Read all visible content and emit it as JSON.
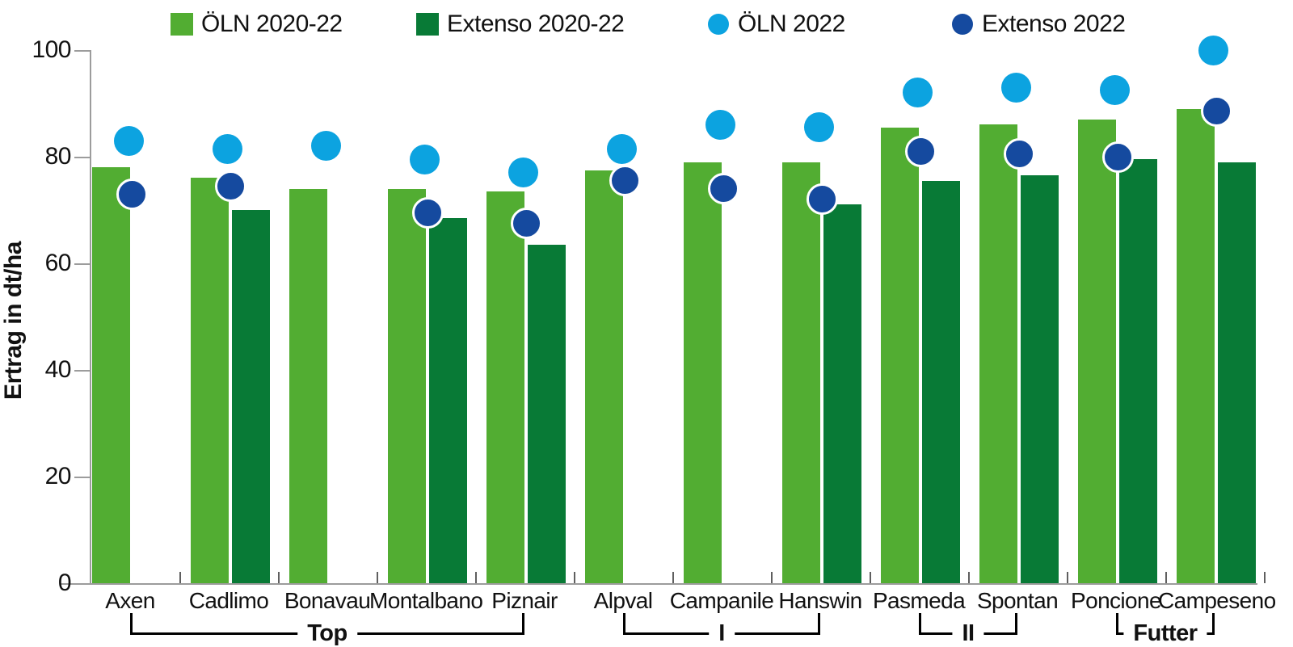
{
  "chart_data": {
    "type": "bar",
    "title": "",
    "ylabel": "Ertrag in dt/ha",
    "xlabel": "",
    "ylim": [
      0,
      100
    ],
    "yticks": [
      0,
      20,
      40,
      60,
      80,
      100
    ],
    "grid": false,
    "legend_position": "top",
    "categories": [
      "Axen",
      "Cadlimo",
      "Bonavau",
      "Montalbano",
      "Piznair",
      "Alpval",
      "Campanile",
      "Hanswin",
      "Pasmeda",
      "Spontan",
      "Poncione",
      "Campeseno"
    ],
    "groups": [
      {
        "label": "Top",
        "from_index": 0,
        "to_index": 4
      },
      {
        "label": "I",
        "from_index": 5,
        "to_index": 7
      },
      {
        "label": "II",
        "from_index": 8,
        "to_index": 9
      },
      {
        "label": "Futter",
        "from_index": 10,
        "to_index": 11
      }
    ],
    "series": [
      {
        "name": "ÖLN 2020-22",
        "render": "bar",
        "color": "#52ad32",
        "values": [
          78,
          76,
          74,
          74,
          73.5,
          77.5,
          79,
          79,
          85.5,
          86,
          87,
          89
        ]
      },
      {
        "name": "Extenso 2020-22",
        "render": "bar",
        "color": "#087a36",
        "values": [
          null,
          70,
          null,
          68.5,
          63.5,
          null,
          null,
          71,
          75.5,
          76.5,
          79.5,
          79
        ]
      },
      {
        "name": "ÖLN 2022",
        "render": "point",
        "color": "#0ca3e0",
        "values": [
          83,
          81.5,
          82,
          79.5,
          77,
          81.5,
          86,
          85.5,
          92,
          93,
          92.5,
          100
        ]
      },
      {
        "name": "Extenso 2022",
        "render": "point",
        "color": "#154a9f",
        "values": [
          73,
          74.5,
          null,
          69.5,
          67.5,
          75.5,
          74,
          72,
          81,
          80.5,
          80,
          88.5
        ]
      }
    ]
  },
  "colors": {
    "axis": "#9c9c9c",
    "separator_tick": "#5f5f5f",
    "text": "#111111",
    "bracket": "#000000"
  }
}
